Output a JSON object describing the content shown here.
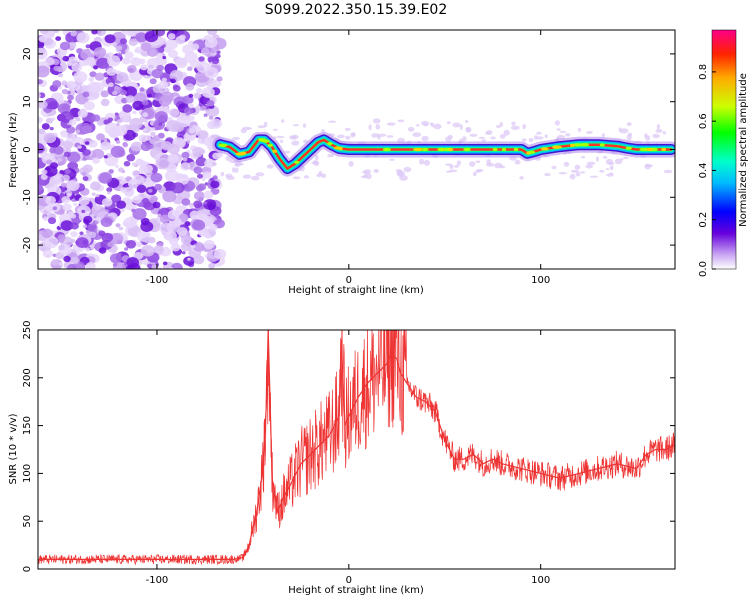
{
  "title": "S099.2022.350.15.39.E02",
  "chart_data": [
    {
      "type": "heatmap",
      "xlabel": "Height of straight line (km)",
      "ylabel": "Frequency (Hz)",
      "xlim": [
        -162,
        170
      ],
      "ylim": [
        -25,
        25
      ],
      "xticks": [
        -100,
        0,
        100
      ],
      "xtick_labels": [
        "-100",
        "0",
        "100"
      ],
      "yticks": [
        -20,
        -10,
        0,
        10,
        20
      ],
      "ytick_labels": [
        "-20",
        "-10",
        "0",
        "10",
        "20"
      ],
      "colorbar": {
        "label": "Normalized spectral amplitude",
        "range": [
          0,
          0.97
        ],
        "ticks": [
          0.0,
          0.2,
          0.4,
          0.6,
          0.8
        ],
        "tick_labels": [
          "0.0",
          "0.2",
          "0.4",
          "0.6",
          "0.8"
        ]
      },
      "noise_region_x": [
        -162,
        -67
      ],
      "ridge": {
        "x": [
          -67,
          -62,
          -57,
          -52,
          -47,
          -44,
          -40,
          -36,
          -32,
          -28,
          -24,
          -20,
          -16,
          -13,
          -9,
          -5,
          0,
          20,
          40,
          60,
          80,
          90,
          93,
          96,
          100,
          110,
          120,
          130,
          140,
          145,
          150,
          160,
          168
        ],
        "y": [
          1,
          0.5,
          -1,
          -0.5,
          2,
          2,
          0.5,
          -2,
          -4,
          -3,
          -1.5,
          0,
          1.5,
          2,
          1,
          0.2,
          0,
          0,
          0,
          0,
          0,
          0,
          -0.8,
          -0.5,
          0,
          0.6,
          1,
          1,
          0.7,
          0.3,
          0,
          0,
          0
        ]
      }
    },
    {
      "type": "line",
      "xlabel": "Height of straight line (km)",
      "ylabel": "SNR (10 * v/v)",
      "xlim": [
        -162,
        170
      ],
      "ylim": [
        0,
        250
      ],
      "xticks": [
        -100,
        0,
        100
      ],
      "xtick_labels": [
        "-100",
        "0",
        "100"
      ],
      "yticks": [
        0,
        50,
        100,
        150,
        200,
        250
      ],
      "ytick_labels": [
        "0",
        "50",
        "100",
        "150",
        "200",
        "250"
      ],
      "color": "#ee3333",
      "series": [
        {
          "x": [
            -162,
            -140,
            -120,
            -100,
            -80,
            -60,
            -55,
            -52,
            -48,
            -45,
            -43,
            -42,
            -40,
            -37,
            -34,
            -30,
            -25,
            -20,
            -15,
            -10,
            -5,
            -4,
            -2,
            0,
            5,
            10,
            15,
            20,
            22,
            25,
            27,
            30,
            35,
            40,
            45,
            50,
            55,
            60,
            65,
            70,
            75,
            80,
            90,
            100,
            110,
            120,
            130,
            140,
            150,
            155,
            160,
            165,
            170
          ],
          "y": [
            10,
            10,
            10,
            10,
            10,
            10,
            12,
            25,
            60,
            100,
            170,
            250,
            95,
            60,
            75,
            90,
            110,
            120,
            130,
            140,
            160,
            240,
            150,
            160,
            180,
            195,
            205,
            215,
            225,
            220,
            205,
            195,
            180,
            175,
            165,
            135,
            115,
            115,
            120,
            110,
            115,
            110,
            105,
            100,
            95,
            100,
            105,
            110,
            105,
            120,
            125,
            125,
            130
          ]
        }
      ]
    }
  ]
}
